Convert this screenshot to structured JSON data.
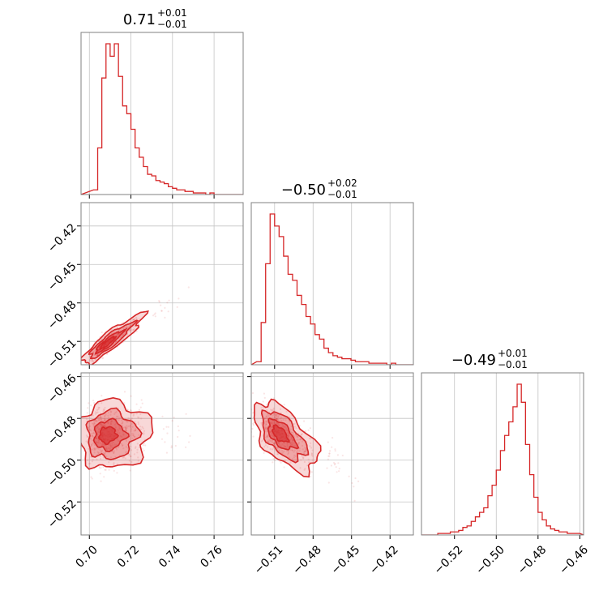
{
  "chart_data": {
    "type": "corner",
    "color": "#d62728",
    "grid": true,
    "parameters": [
      {
        "title": {
          "median": "0.71",
          "plus": "+0.01",
          "minus": "−0.01"
        },
        "range": [
          0.696,
          0.774
        ],
        "ticks": [
          0.7,
          0.72,
          0.74,
          0.76
        ],
        "tick_labels": [
          "0.70",
          "0.72",
          "0.74",
          "0.76"
        ],
        "histogram": {
          "bin_edges": [
            0.702,
            0.704,
            0.706,
            0.708,
            0.71,
            0.712,
            0.714,
            0.716,
            0.718,
            0.72,
            0.722,
            0.724,
            0.726,
            0.728,
            0.73,
            0.732,
            0.734,
            0.736,
            0.738,
            0.74,
            0.742,
            0.744,
            0.746,
            0.748,
            0.75,
            0.752,
            0.754,
            0.756,
            0.758,
            0.76,
            0.762,
            0.764,
            0.766
          ],
          "counts": [
            3,
            30,
            75,
            97,
            89,
            97,
            76,
            57,
            52,
            42,
            30,
            24,
            18,
            13,
            12,
            9,
            8,
            7,
            5,
            4,
            3,
            3,
            2,
            2,
            1,
            1,
            1,
            0,
            1,
            0,
            0,
            0
          ]
        }
      },
      {
        "title": {
          "median": "−0.50",
          "plus": "+0.02",
          "minus": "−0.01"
        },
        "range": [
          -0.5282,
          -0.4018
        ],
        "ticks": [
          -0.51,
          -0.48,
          -0.45,
          -0.42
        ],
        "tick_labels": [
          "−0.51",
          "−0.48",
          "−0.45",
          "−0.42"
        ],
        "histogram": {
          "bin_edges": [
            -0.524,
            -0.5205,
            -0.517,
            -0.5135,
            -0.51,
            -0.5065,
            -0.503,
            -0.4995,
            -0.496,
            -0.4925,
            -0.489,
            -0.4855,
            -0.482,
            -0.4785,
            -0.475,
            -0.4715,
            -0.468,
            -0.4645,
            -0.461,
            -0.4575,
            -0.454,
            -0.4505,
            -0.447,
            -0.4435,
            -0.44,
            -0.4365,
            -0.433,
            -0.4295,
            -0.426,
            -0.4225,
            -0.419,
            -0.4155,
            -0.412,
            -0.4085
          ],
          "counts": [
            2,
            28,
            67,
            100,
            92,
            85,
            72,
            60,
            56,
            46,
            40,
            32,
            27,
            20,
            17,
            11,
            8,
            6,
            5,
            4,
            4,
            3,
            2,
            2,
            2,
            1,
            1,
            1,
            1,
            0,
            1,
            0,
            0
          ]
        }
      },
      {
        "title": {
          "median": "−0.49",
          "plus": "+0.01",
          "minus": "−0.01"
        },
        "range": [
          -0.5358,
          -0.4582
        ],
        "ticks": [
          -0.52,
          -0.5,
          -0.48,
          -0.46
        ],
        "tick_labels": [
          "−0.52",
          "−0.50",
          "−0.48",
          "−0.46"
        ],
        "histogram": {
          "bin_edges": [
            -0.532,
            -0.53,
            -0.528,
            -0.526,
            -0.524,
            -0.522,
            -0.52,
            -0.518,
            -0.516,
            -0.514,
            -0.512,
            -0.51,
            -0.508,
            -0.506,
            -0.504,
            -0.502,
            -0.5,
            -0.498,
            -0.496,
            -0.494,
            -0.492,
            -0.49,
            -0.488,
            -0.486,
            -0.484,
            -0.482,
            -0.48,
            -0.478,
            -0.476,
            -0.474,
            -0.472,
            -0.47,
            -0.468,
            -0.466,
            -0.464,
            -0.462,
            -0.46
          ],
          "counts": [
            0,
            0,
            1,
            1,
            1,
            2,
            2,
            3,
            5,
            6,
            9,
            12,
            15,
            18,
            26,
            33,
            43,
            56,
            66,
            75,
            85,
            100,
            88,
            60,
            40,
            25,
            15,
            10,
            6,
            4,
            3,
            2,
            2,
            1,
            1,
            1
          ]
        }
      }
    ],
    "joint": [
      {
        "x": 0,
        "y": 1,
        "center": [
          0.708,
          -0.512
        ],
        "spread": [
          0.006,
          0.008
        ],
        "corr": 0.9
      },
      {
        "x": 0,
        "y": 2,
        "center": [
          0.708,
          -0.488
        ],
        "spread": [
          0.007,
          0.007
        ],
        "corr": 0.05
      },
      {
        "x": 1,
        "y": 2,
        "center": [
          -0.507,
          -0.487
        ],
        "spread": [
          0.01,
          0.007
        ],
        "corr": -0.55
      }
    ]
  }
}
